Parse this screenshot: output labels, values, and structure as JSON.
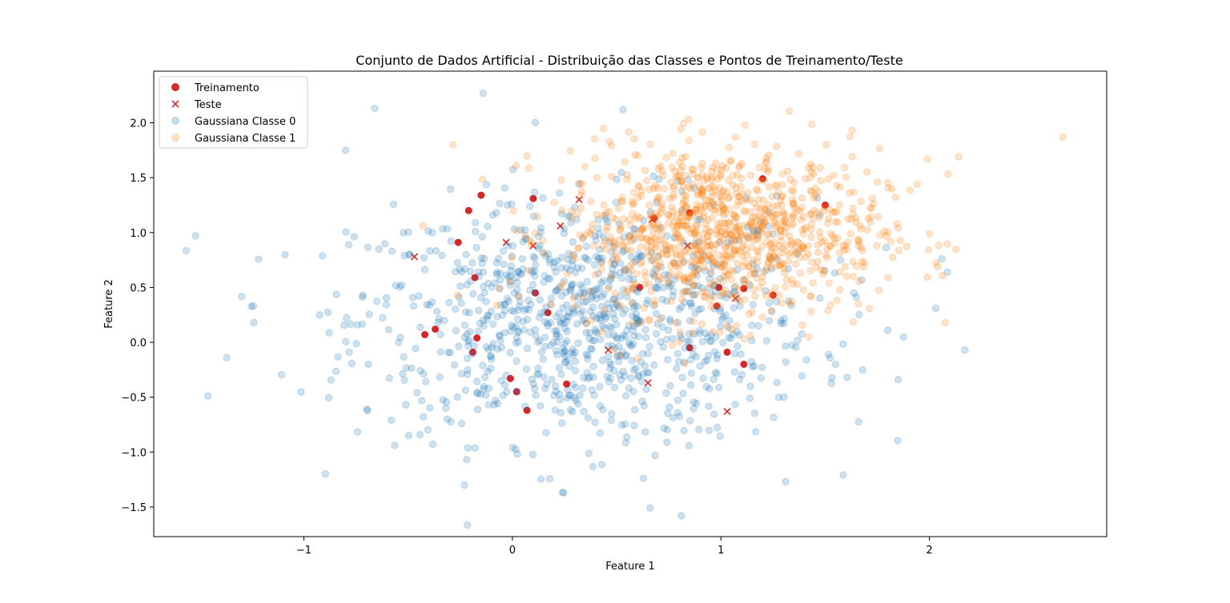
{
  "chart_data": {
    "type": "scatter",
    "title": "Conjunto de Dados Artificial - Distribuição das Classes e Pontos de Treinamento/Teste",
    "xlabel": "Feature 1",
    "ylabel": "Feature 2",
    "xlim": [
      -1.72,
      2.85
    ],
    "ylim": [
      -1.77,
      2.47
    ],
    "xticks": [
      -1,
      0,
      1,
      2
    ],
    "yticks": [
      -1.5,
      -1.0,
      -0.5,
      0.0,
      0.5,
      1.0,
      1.5,
      2.0
    ],
    "xtick_labels": [
      "−1",
      "0",
      "1",
      "2"
    ],
    "ytick_labels": [
      "−1.5",
      "−1.0",
      "−0.5",
      "0.0",
      "0.5",
      "1.0",
      "1.5",
      "2.0"
    ],
    "legend_position": "upper-left",
    "colors": {
      "train": "#d62728",
      "test": "#d62728",
      "class0": "#1f77b4",
      "class1": "#ff7f0e"
    },
    "series": [
      {
        "name": "Treinamento",
        "marker": "circle",
        "points": [
          [
            -0.15,
            1.34
          ],
          [
            0.1,
            1.31
          ],
          [
            -0.21,
            1.2
          ],
          [
            -0.26,
            0.91
          ],
          [
            -0.18,
            0.59
          ],
          [
            0.11,
            0.45
          ],
          [
            -0.37,
            0.12
          ],
          [
            -0.42,
            0.07
          ],
          [
            -0.17,
            0.04
          ],
          [
            -0.19,
            -0.09
          ],
          [
            0.17,
            0.27
          ],
          [
            -0.01,
            -0.33
          ],
          [
            0.02,
            -0.45
          ],
          [
            0.07,
            -0.62
          ],
          [
            0.26,
            -0.38
          ],
          [
            0.85,
            -0.05
          ],
          [
            1.03,
            -0.09
          ],
          [
            1.11,
            -0.2
          ],
          [
            0.98,
            0.33
          ],
          [
            0.99,
            0.5
          ],
          [
            1.11,
            0.49
          ],
          [
            1.25,
            0.43
          ],
          [
            1.2,
            1.49
          ],
          [
            1.5,
            1.25
          ],
          [
            0.85,
            1.18
          ],
          [
            0.68,
            1.13
          ],
          [
            0.61,
            0.5
          ]
        ]
      },
      {
        "name": "Teste",
        "marker": "x",
        "points": [
          [
            0.32,
            1.3
          ],
          [
            0.23,
            1.06
          ],
          [
            -0.03,
            0.91
          ],
          [
            0.1,
            0.88
          ],
          [
            -0.47,
            0.78
          ],
          [
            0.46,
            -0.07
          ],
          [
            0.65,
            -0.37
          ],
          [
            1.03,
            -0.63
          ],
          [
            1.07,
            0.4
          ],
          [
            0.67,
            1.12
          ],
          [
            0.84,
            0.88
          ]
        ]
      },
      {
        "name": "Gaussiana Classe 0",
        "marker": "circle",
        "mean": [
          0.35,
          0.2
        ],
        "std": [
          0.55,
          0.55
        ],
        "n": 1000,
        "extra_points": [
          [
            -1.52,
            0.97
          ],
          [
            -1.46,
            -0.49
          ],
          [
            -1.37,
            -0.14
          ],
          [
            -1.24,
            0.18
          ],
          [
            -0.66,
            2.13
          ],
          [
            -0.14,
            2.27
          ],
          [
            0.53,
            2.12
          ],
          [
            -0.8,
            1.75
          ],
          [
            2.03,
            0.31
          ],
          [
            2.06,
            0.76
          ],
          [
            2.17,
            -0.07
          ],
          [
            1.85,
            -0.34
          ],
          [
            1.68,
            -0.25
          ],
          [
            1.8,
            0.11
          ],
          [
            0.81,
            -1.58
          ],
          [
            0.66,
            -1.51
          ],
          [
            -0.23,
            -1.3
          ],
          [
            0.24,
            -1.37
          ],
          [
            1.31,
            -1.27
          ],
          [
            1.55,
            -0.2
          ]
        ]
      },
      {
        "name": "Gaussiana Classe 1",
        "marker": "circle",
        "mean": [
          1.0,
          1.0
        ],
        "std": [
          0.38,
          0.38
        ],
        "n": 1000,
        "extra_points": [
          [
            2.64,
            1.87
          ],
          [
            2.14,
            1.69
          ],
          [
            2.09,
            1.53
          ],
          [
            1.99,
            1.67
          ],
          [
            1.94,
            1.44
          ],
          [
            1.82,
            1.4
          ],
          [
            1.85,
            1.04
          ],
          [
            1.63,
            1.93
          ],
          [
            1.07,
            1.87
          ],
          [
            1.57,
            0.64
          ]
        ]
      }
    ]
  }
}
